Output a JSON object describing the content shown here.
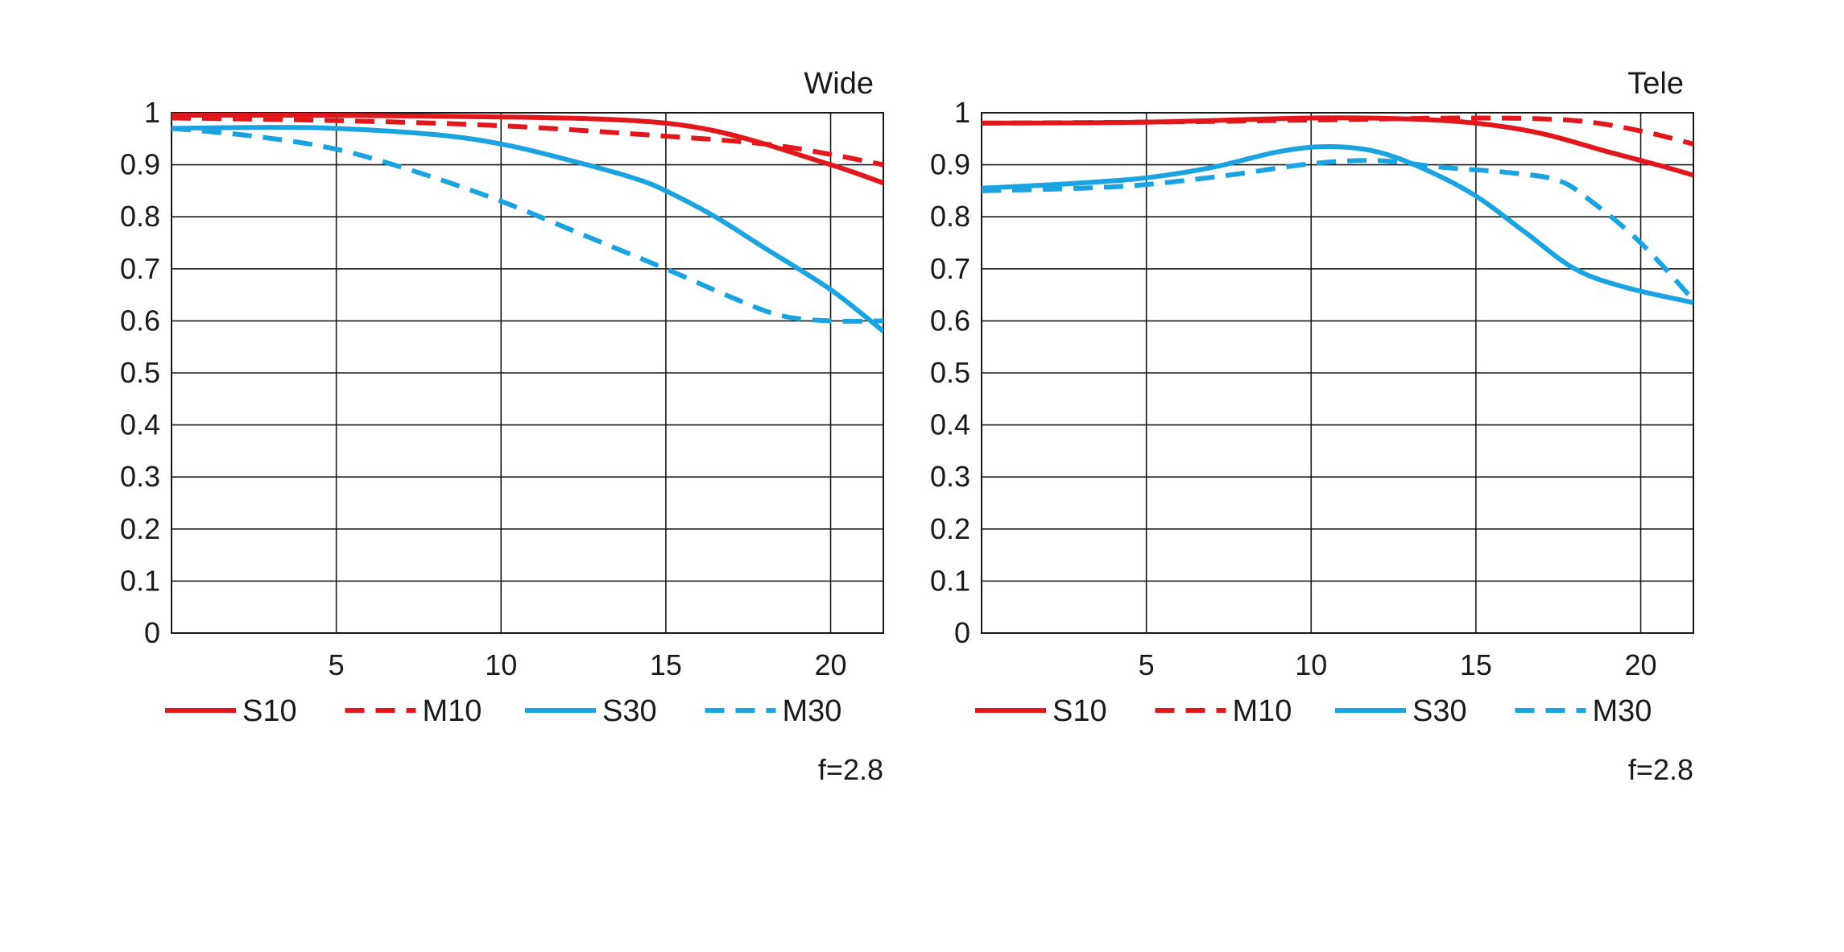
{
  "colors": {
    "red": "#e2171c",
    "blue": "#1aa3e0",
    "grid": "#1a1a1a",
    "text": "#1a1a1a"
  },
  "chart_data": [
    {
      "type": "line",
      "title": "Wide",
      "note": "f=2.8",
      "xlabel": "",
      "ylabel": "",
      "xlim": [
        0,
        21.6
      ],
      "ylim": [
        0,
        1
      ],
      "xticks": [
        5,
        10,
        15,
        20
      ],
      "xtick_labels": [
        "5",
        "10",
        "15",
        "20"
      ],
      "yticks": [
        0,
        0.1,
        0.2,
        0.3,
        0.4,
        0.5,
        0.6,
        0.7,
        0.8,
        0.9,
        1
      ],
      "ytick_labels": [
        "0",
        "0.1",
        "0.2",
        "0.3",
        "0.4",
        "0.5",
        "0.6",
        "0.7",
        "0.8",
        "0.9",
        "1"
      ],
      "grid": true,
      "legend_position": "bottom",
      "series": [
        {
          "name": "S10",
          "color": "#e2171c",
          "dashed": false,
          "x": [
            0,
            5,
            10,
            13,
            15,
            16.5,
            18,
            19.5,
            20.5,
            21.6
          ],
          "y": [
            0.995,
            0.995,
            0.992,
            0.988,
            0.98,
            0.965,
            0.94,
            0.91,
            0.89,
            0.865
          ]
        },
        {
          "name": "M10",
          "color": "#e2171c",
          "dashed": false,
          "dash": true,
          "x": [
            0,
            5,
            10,
            15,
            18,
            20,
            21.6
          ],
          "y": [
            0.99,
            0.985,
            0.975,
            0.955,
            0.94,
            0.92,
            0.9
          ]
        },
        {
          "name": "S30",
          "color": "#1aa3e0",
          "dashed": false,
          "x": [
            0,
            3,
            5,
            8,
            10,
            12,
            14,
            15,
            16.5,
            18,
            20,
            21.6
          ],
          "y": [
            0.97,
            0.972,
            0.97,
            0.958,
            0.94,
            0.91,
            0.875,
            0.85,
            0.8,
            0.74,
            0.66,
            0.58
          ]
        },
        {
          "name": "M30",
          "color": "#1aa3e0",
          "dashed": false,
          "dash": true,
          "x": [
            0,
            2.5,
            5,
            7.5,
            10,
            12.5,
            15,
            17,
            18.5,
            20,
            21.6
          ],
          "y": [
            0.97,
            0.955,
            0.93,
            0.885,
            0.83,
            0.765,
            0.7,
            0.645,
            0.61,
            0.6,
            0.6
          ]
        }
      ]
    },
    {
      "type": "line",
      "title": "Tele",
      "note": "f=2.8",
      "xlabel": "",
      "ylabel": "",
      "xlim": [
        0,
        21.6
      ],
      "ylim": [
        0,
        1
      ],
      "xticks": [
        5,
        10,
        15,
        20
      ],
      "xtick_labels": [
        "5",
        "10",
        "15",
        "20"
      ],
      "yticks": [
        0,
        0.1,
        0.2,
        0.3,
        0.4,
        0.5,
        0.6,
        0.7,
        0.8,
        0.9,
        1
      ],
      "ytick_labels": [
        "0",
        "0.1",
        "0.2",
        "0.3",
        "0.4",
        "0.5",
        "0.6",
        "0.7",
        "0.8",
        "0.9",
        "1"
      ],
      "grid": true,
      "legend_position": "bottom",
      "series": [
        {
          "name": "S10",
          "color": "#e2171c",
          "dashed": false,
          "x": [
            0,
            5,
            10,
            13,
            15,
            17,
            19,
            20.5,
            21.6
          ],
          "y": [
            0.98,
            0.982,
            0.99,
            0.988,
            0.98,
            0.96,
            0.925,
            0.9,
            0.88
          ]
        },
        {
          "name": "M10",
          "color": "#e2171c",
          "dashed": false,
          "dash": true,
          "x": [
            0,
            5,
            10,
            15,
            18,
            20,
            21.6
          ],
          "y": [
            0.98,
            0.982,
            0.986,
            0.99,
            0.985,
            0.965,
            0.94
          ]
        },
        {
          "name": "S30",
          "color": "#1aa3e0",
          "dashed": false,
          "x": [
            0,
            3,
            5,
            7,
            9,
            10.5,
            12,
            13.5,
            15,
            16.5,
            18,
            19.5,
            21.6
          ],
          "y": [
            0.855,
            0.865,
            0.875,
            0.895,
            0.925,
            0.935,
            0.925,
            0.89,
            0.84,
            0.77,
            0.7,
            0.665,
            0.635
          ]
        },
        {
          "name": "M30",
          "color": "#1aa3e0",
          "dashed": false,
          "dash": true,
          "x": [
            0,
            3,
            5,
            7.5,
            10,
            12,
            14,
            16,
            17.5,
            18.5,
            20,
            21.6
          ],
          "y": [
            0.85,
            0.855,
            0.862,
            0.88,
            0.902,
            0.908,
            0.895,
            0.885,
            0.87,
            0.83,
            0.75,
            0.64
          ]
        }
      ]
    }
  ]
}
